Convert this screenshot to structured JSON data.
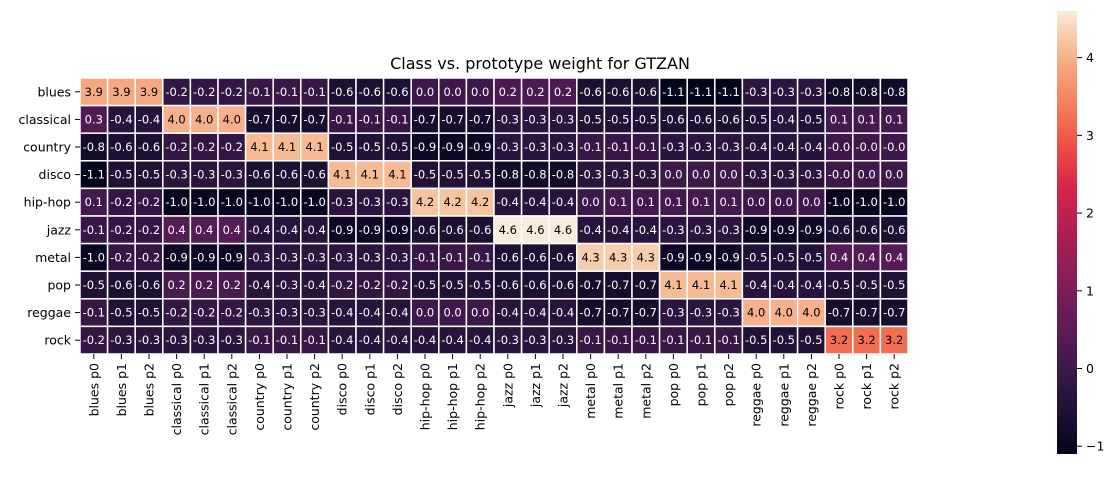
{
  "chart_data": {
    "type": "heatmap",
    "title": "Class vs. prototype weight for GTZAN",
    "xlabel": "",
    "ylabel": "",
    "rows": [
      "blues",
      "classical",
      "country",
      "disco",
      "hip-hop",
      "jazz",
      "metal",
      "pop",
      "reggae",
      "rock"
    ],
    "columns": [
      "blues p0",
      "blues p1",
      "blues p2",
      "classical p0",
      "classical p1",
      "classical p2",
      "country p0",
      "country p1",
      "country p2",
      "disco p0",
      "disco p1",
      "disco p2",
      "hip-hop p0",
      "hip-hop p1",
      "hip-hop p2",
      "jazz p0",
      "jazz p1",
      "jazz p2",
      "metal p0",
      "metal p1",
      "metal p2",
      "pop p0",
      "pop p1",
      "pop p2",
      "reggae p0",
      "reggae p1",
      "reggae p2",
      "rock p0",
      "rock p1",
      "rock p2"
    ],
    "values": [
      [
        3.9,
        3.9,
        3.9,
        -0.2,
        -0.2,
        -0.2,
        -0.1,
        -0.1,
        -0.1,
        -0.6,
        -0.6,
        -0.6,
        0.0,
        0.0,
        0.0,
        0.2,
        0.2,
        0.2,
        -0.6,
        -0.6,
        -0.6,
        -1.1,
        -1.1,
        -1.1,
        -0.3,
        -0.3,
        -0.3,
        -0.8,
        -0.8,
        -0.8
      ],
      [
        0.3,
        -0.4,
        -0.4,
        4.0,
        4.0,
        4.0,
        -0.7,
        -0.7,
        -0.7,
        -0.1,
        -0.1,
        -0.1,
        -0.7,
        -0.7,
        -0.7,
        -0.3,
        -0.3,
        -0.3,
        -0.5,
        -0.5,
        -0.5,
        -0.6,
        -0.6,
        -0.6,
        -0.5,
        -0.4,
        -0.5,
        0.1,
        0.1,
        0.1
      ],
      [
        -0.8,
        -0.6,
        -0.6,
        -0.2,
        -0.2,
        -0.2,
        4.1,
        4.1,
        4.1,
        -0.5,
        -0.5,
        -0.5,
        -0.9,
        -0.9,
        -0.9,
        -0.3,
        -0.3,
        -0.3,
        -0.1,
        -0.1,
        -0.1,
        -0.3,
        -0.3,
        -0.3,
        -0.4,
        -0.4,
        -0.4,
        -0.0,
        -0.0,
        -0.0
      ],
      [
        -1.1,
        -0.5,
        -0.5,
        -0.3,
        -0.3,
        -0.3,
        -0.6,
        -0.6,
        -0.6,
        4.1,
        4.1,
        4.1,
        -0.5,
        -0.5,
        -0.5,
        -0.8,
        -0.8,
        -0.8,
        -0.3,
        -0.3,
        -0.3,
        0.0,
        0.0,
        0.0,
        -0.3,
        -0.3,
        -0.3,
        -0.0,
        0.0,
        0.0
      ],
      [
        0.1,
        -0.2,
        -0.2,
        -1.0,
        -1.0,
        -1.0,
        -1.0,
        -1.0,
        -1.0,
        -0.3,
        -0.3,
        -0.3,
        4.2,
        4.2,
        4.2,
        -0.4,
        -0.4,
        -0.4,
        0.0,
        0.1,
        0.1,
        0.1,
        0.1,
        0.1,
        0.0,
        0.0,
        0.0,
        -1.0,
        -1.0,
        -1.0
      ],
      [
        -0.1,
        -0.2,
        -0.2,
        0.4,
        0.4,
        0.4,
        -0.4,
        -0.4,
        -0.4,
        -0.9,
        -0.9,
        -0.9,
        -0.6,
        -0.6,
        -0.6,
        4.6,
        4.6,
        4.6,
        -0.4,
        -0.4,
        -0.4,
        -0.3,
        -0.3,
        -0.3,
        -0.9,
        -0.9,
        -0.9,
        -0.6,
        -0.6,
        -0.6
      ],
      [
        -1.0,
        -0.2,
        -0.2,
        -0.9,
        -0.9,
        -0.9,
        -0.3,
        -0.3,
        -0.3,
        -0.3,
        -0.3,
        -0.3,
        -0.1,
        -0.1,
        -0.1,
        -0.6,
        -0.6,
        -0.6,
        4.3,
        4.3,
        4.3,
        -0.9,
        -0.9,
        -0.9,
        -0.5,
        -0.5,
        -0.5,
        0.4,
        0.4,
        0.4
      ],
      [
        -0.5,
        -0.6,
        -0.6,
        0.2,
        0.2,
        0.2,
        -0.4,
        -0.3,
        -0.4,
        -0.2,
        -0.2,
        -0.2,
        -0.5,
        -0.5,
        -0.5,
        -0.6,
        -0.6,
        -0.6,
        -0.7,
        -0.7,
        -0.7,
        4.1,
        4.1,
        4.1,
        -0.4,
        -0.4,
        -0.4,
        -0.5,
        -0.5,
        -0.5
      ],
      [
        -0.1,
        -0.5,
        -0.5,
        -0.2,
        -0.2,
        -0.2,
        -0.3,
        -0.3,
        -0.3,
        -0.4,
        -0.4,
        -0.4,
        0.0,
        0.0,
        0.0,
        -0.4,
        -0.4,
        -0.4,
        -0.7,
        -0.7,
        -0.7,
        -0.3,
        -0.3,
        -0.3,
        4.0,
        4.0,
        4.0,
        -0.7,
        -0.7,
        -0.7
      ],
      [
        -0.2,
        -0.3,
        -0.3,
        -0.3,
        -0.3,
        -0.3,
        -0.1,
        -0.1,
        -0.1,
        -0.4,
        -0.4,
        -0.4,
        -0.4,
        -0.4,
        -0.4,
        -0.3,
        -0.3,
        -0.3,
        -0.1,
        -0.1,
        -0.1,
        -0.1,
        -0.1,
        -0.1,
        -0.5,
        -0.5,
        -0.5,
        3.2,
        3.2,
        3.2
      ]
    ],
    "colorbar": {
      "range": [
        -1.1,
        4.6
      ],
      "ticks": [
        -1,
        0,
        1,
        2,
        3,
        4
      ],
      "tick_labels": [
        "−1",
        "0",
        "1",
        "2",
        "3",
        "4"
      ],
      "colormap": "rocket"
    },
    "colors": {
      "cell_border": "#ffffff",
      "text_dark": "#000000",
      "text_light": "#ffffff"
    }
  }
}
